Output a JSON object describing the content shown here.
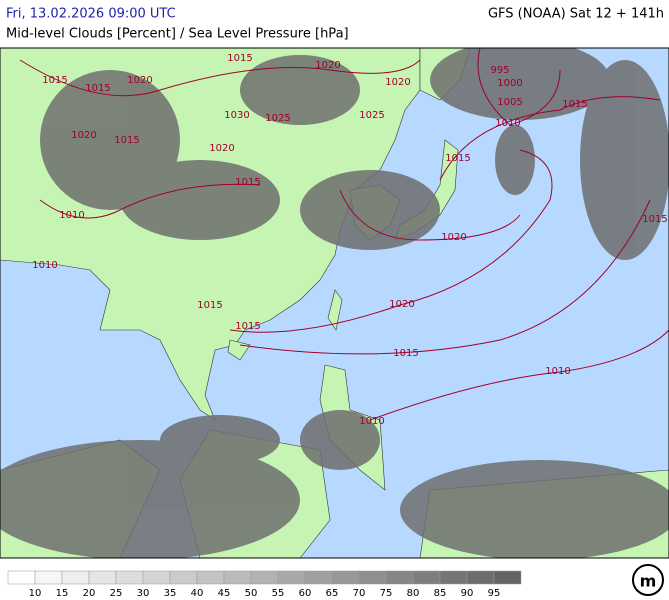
{
  "header": {
    "datetime": "Fri, 13.02.2026 09:00 UTC",
    "model": "GFS (NOAA) Sat 12 + 141h",
    "title": "Mid-level Clouds [Percent] / Sea Level Pressure [hPa]"
  },
  "isobar_labels": [
    "1015",
    "1020",
    "1015",
    "1020",
    "1015",
    "1020",
    "995",
    "1000",
    "1005",
    "1015",
    "1010",
    "1030",
    "1025",
    "1025",
    "1020",
    "1015",
    "1020",
    "1015",
    "1015",
    "1010",
    "1010",
    "1020",
    "1015",
    "1020",
    "1015",
    "1015",
    "1015",
    "1010",
    "1010"
  ],
  "legend": {
    "ticks": [
      "10",
      "15",
      "20",
      "25",
      "30",
      "35",
      "40",
      "45",
      "50",
      "55",
      "60",
      "65",
      "70",
      "75",
      "80",
      "85",
      "90",
      "95"
    ]
  },
  "logo": "m"
}
